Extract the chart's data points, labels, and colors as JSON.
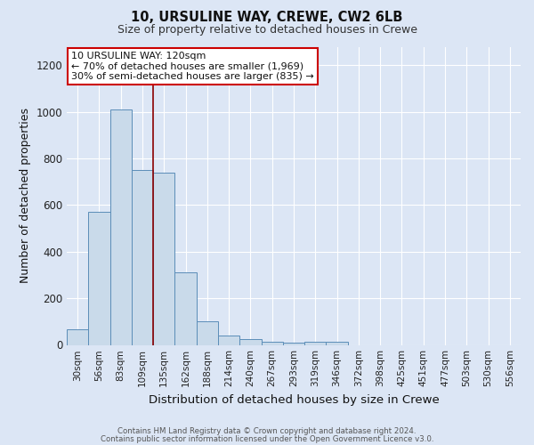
{
  "title1": "10, URSULINE WAY, CREWE, CW2 6LB",
  "title2": "Size of property relative to detached houses in Crewe",
  "xlabel": "Distribution of detached houses by size in Crewe",
  "ylabel": "Number of detached properties",
  "bar_labels": [
    "30sqm",
    "56sqm",
    "83sqm",
    "109sqm",
    "135sqm",
    "162sqm",
    "188sqm",
    "214sqm",
    "240sqm",
    "267sqm",
    "293sqm",
    "319sqm",
    "346sqm",
    "372sqm",
    "398sqm",
    "425sqm",
    "451sqm",
    "477sqm",
    "503sqm",
    "530sqm",
    "556sqm"
  ],
  "bar_values": [
    65,
    570,
    1010,
    750,
    740,
    310,
    100,
    40,
    25,
    12,
    8,
    15,
    15,
    0,
    0,
    0,
    0,
    0,
    0,
    0,
    0
  ],
  "bar_color": "#c9daea",
  "bar_edge_color": "#5b8db8",
  "background_color": "#dce6f5",
  "grid_color": "#ffffff",
  "vline_x_index": 3.5,
  "vline_color": "#8b0000",
  "annotation_text": "10 URSULINE WAY: 120sqm\n← 70% of detached houses are smaller (1,969)\n30% of semi-detached houses are larger (835) →",
  "annotation_box_color": "#ffffff",
  "annotation_box_edge": "#cc0000",
  "ylim": [
    0,
    1280
  ],
  "yticks": [
    0,
    200,
    400,
    600,
    800,
    1000,
    1200
  ],
  "footer1": "Contains HM Land Registry data © Crown copyright and database right 2024.",
  "footer2": "Contains public sector information licensed under the Open Government Licence v3.0."
}
